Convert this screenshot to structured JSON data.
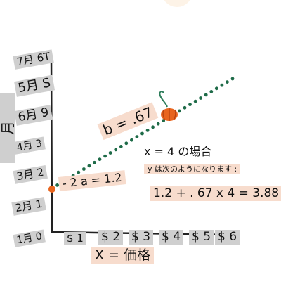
{
  "axis": {
    "y_title": "月",
    "y_ticks": [
      "1月 0",
      "2月 1",
      "3月 2",
      "4月 3",
      "5月 S",
      "6月 9",
      "7月 6T"
    ],
    "x_title": "X = 価格",
    "x_ticks": [
      "$ 1",
      "$ 2",
      "$ 3",
      "$ 4",
      "$ 5",
      "$ 6"
    ]
  },
  "annotations": {
    "slope": "b = .67",
    "intercept": "- 2 a = 1.2",
    "example_heading": "x = 4 の場合",
    "example_sub": "y は次のようになります :",
    "equation": "1.2 + . 67 x 4 = 3.88"
  },
  "colors": {
    "line": "#1e6b48",
    "pumpkin": "#e8651e",
    "stem": "#2e7d5b",
    "label_bg": "#cfcfcf",
    "note_bg": "#f7dccd",
    "axis": "#222222"
  },
  "chart_data": {
    "type": "line",
    "title": "",
    "xlabel": "X = 価格",
    "ylabel": "月",
    "intercept": 1.2,
    "slope": 0.67,
    "example_point": [
      4,
      3.88
    ]
  }
}
